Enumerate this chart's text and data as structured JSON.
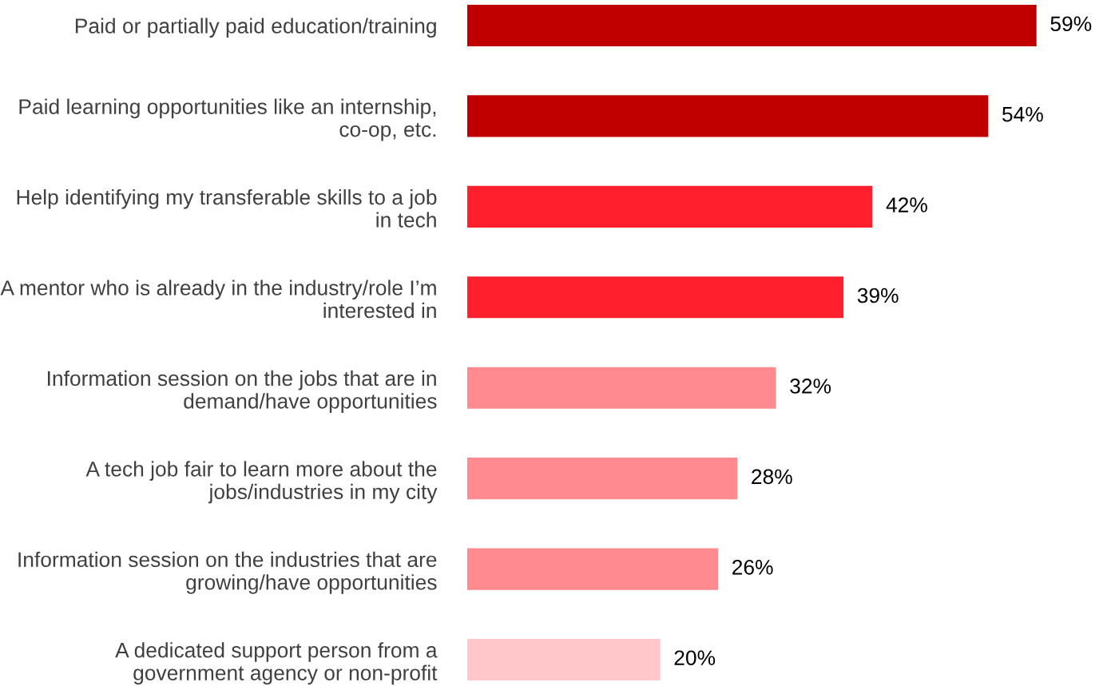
{
  "chart_data": {
    "type": "bar",
    "orientation": "horizontal",
    "categories": [
      "Paid or partially paid education/training",
      "Paid learning opportunities like an internship, co-op, etc.",
      "Help identifying my transferable skills to a job in tech",
      "A mentor who is already in the industry/role I’m interested in",
      "Information session on the jobs that are in demand/have opportunities",
      "A tech job fair to learn more about the jobs/industries in my city",
      "Information session on the industries that are growing/have opportunities",
      "A dedicated support person from a government agency or non-profit"
    ],
    "values": [
      59,
      54,
      42,
      39,
      32,
      28,
      26,
      20
    ],
    "value_labels": [
      "59%",
      "54%",
      "42%",
      "39%",
      "32%",
      "28%",
      "26%",
      "20%"
    ],
    "colors": [
      "#c00000",
      "#c00000",
      "#ff1f2d",
      "#ff1f2d",
      "#ff8b90",
      "#ff8b90",
      "#ff8b90",
      "#ffc7ca"
    ],
    "grid": false,
    "legend": false
  }
}
